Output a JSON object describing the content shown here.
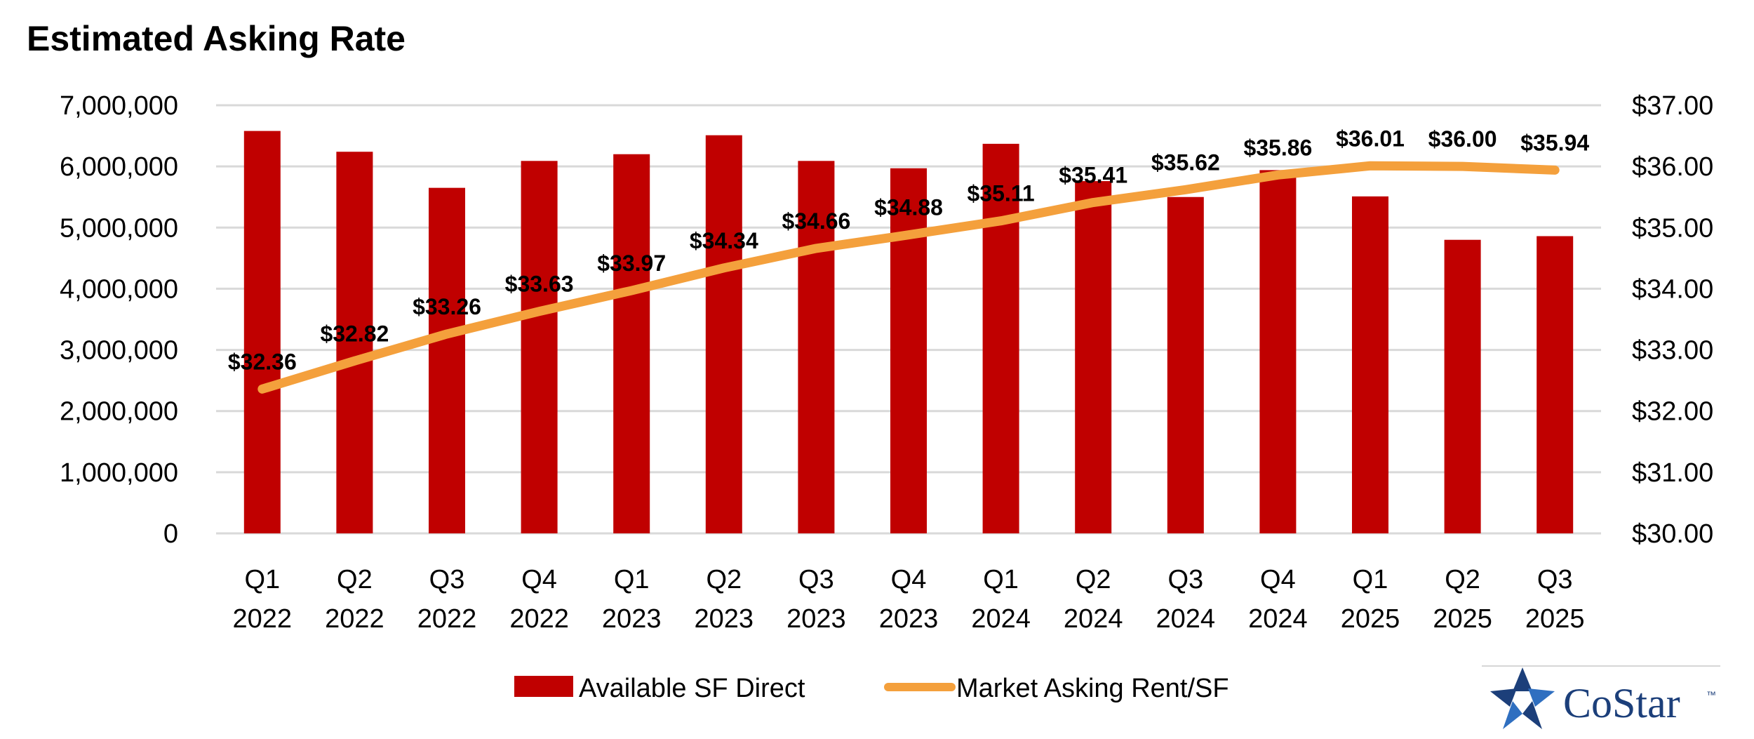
{
  "chart_data": {
    "type": "bar",
    "title": "Estimated Asking Rate",
    "categories": [
      "Q1\n2022",
      "Q2\n2022",
      "Q3\n2022",
      "Q4\n2022",
      "Q1\n2023",
      "Q2\n2023",
      "Q3\n2023",
      "Q4\n2023",
      "Q1\n2024",
      "Q2\n2024",
      "Q3\n2024",
      "Q4\n2024",
      "Q1\n2025",
      "Q2\n2025",
      "Q3\n2025"
    ],
    "series": [
      {
        "name": "Available SF Direct",
        "type": "bar",
        "axis": "left",
        "color": "#c00000",
        "values": [
          6580000,
          6240000,
          5650000,
          6090000,
          6200000,
          6510000,
          6090000,
          5970000,
          6370000,
          5760000,
          5500000,
          5940000,
          5510000,
          4800000,
          4860000
        ]
      },
      {
        "name": "Market Asking Rent/SF",
        "type": "line",
        "axis": "right",
        "color": "#f4a03c",
        "values": [
          32.36,
          32.82,
          33.26,
          33.63,
          33.97,
          34.34,
          34.66,
          34.88,
          35.11,
          35.41,
          35.62,
          35.86,
          36.01,
          36.0,
          35.94
        ],
        "labels": [
          "$32.36",
          "$32.82",
          "$33.26",
          "$33.63",
          "$33.97",
          "$34.34",
          "$34.66",
          "$34.88",
          "$35.11",
          "$35.41",
          "$35.62",
          "$35.86",
          "$36.01",
          "$36.00",
          "$35.94"
        ]
      }
    ],
    "y_left": {
      "range": [
        0,
        7000000
      ],
      "ticks": [
        "0",
        "1,000,000",
        "2,000,000",
        "3,000,000",
        "4,000,000",
        "5,000,000",
        "6,000,000",
        "7,000,000"
      ]
    },
    "y_right": {
      "range": [
        30,
        37
      ],
      "ticks": [
        "$30.00",
        "$31.00",
        "$32.00",
        "$33.00",
        "$34.00",
        "$35.00",
        "$36.00",
        "$37.00"
      ]
    },
    "grid": true,
    "legend": "bottom-center"
  },
  "brand": {
    "name": "CoStar",
    "tm": "™",
    "logo_colors": [
      "#1c3f7a",
      "#2f6fc0"
    ]
  }
}
